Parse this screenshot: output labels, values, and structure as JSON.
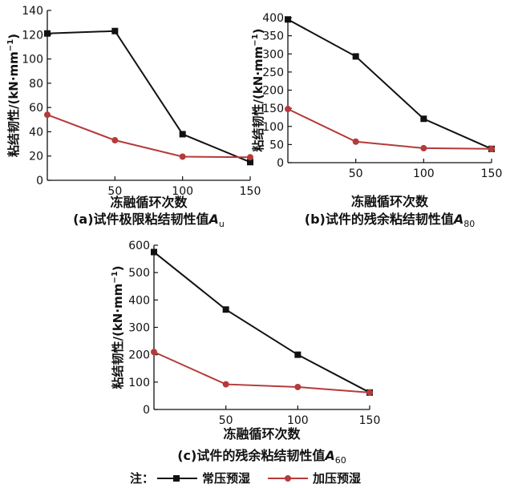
{
  "series_colors": {
    "normal": "#111111",
    "pressurized": "#b53a3a"
  },
  "chart_data": [
    {
      "type": "line",
      "caption_prefix": "(a)试件极限粘结韧性值",
      "caption_symbol": "A",
      "caption_sub": "u",
      "xlabel": "冻融循环次数",
      "ylabel": "粘结韧性/(kN·mm",
      "ylabel_sup": "−1",
      "ylabel_close": ")",
      "x": [
        0,
        50,
        100,
        150
      ],
      "xticks": [
        "50",
        "100",
        "150"
      ],
      "xlim": [
        0,
        150
      ],
      "ylim": [
        0,
        140
      ],
      "yticks": [
        "0",
        "20",
        "40",
        "60",
        "80",
        "100",
        "120",
        "140"
      ],
      "series": [
        {
          "name": "常压预湿",
          "values": [
            121,
            123,
            38,
            15
          ]
        },
        {
          "name": "加压预湿",
          "values": [
            54,
            33,
            19.5,
            19
          ]
        }
      ]
    },
    {
      "type": "line",
      "caption_prefix": "(b)试件的残余粘结韧性值",
      "caption_symbol": "A",
      "caption_sub": "80",
      "xlabel": "冻融循环次数",
      "ylabel": "粘结韧性/(kN·mm",
      "ylabel_sup": "−1",
      "ylabel_close": ")",
      "x": [
        0,
        50,
        100,
        150
      ],
      "xticks": [
        "50",
        "100",
        "150"
      ],
      "xlim": [
        0,
        150
      ],
      "ylim": [
        0,
        400
      ],
      "yticks": [
        "0",
        "50",
        "100",
        "150",
        "200",
        "250",
        "300",
        "350",
        "400"
      ],
      "series": [
        {
          "name": "常压预湿",
          "values": [
            395,
            293,
            121,
            38
          ]
        },
        {
          "name": "加压预湿",
          "values": [
            148,
            58,
            40,
            38
          ]
        }
      ]
    },
    {
      "type": "line",
      "caption_prefix": "(c)试件的残余粘结韧性值",
      "caption_symbol": "A",
      "caption_sub": "60",
      "xlabel": "冻融循环次数",
      "ylabel": "粘结韧性/(kN·mm",
      "ylabel_sup": "−1",
      "ylabel_close": ")",
      "x": [
        0,
        50,
        100,
        150
      ],
      "xticks": [
        "50",
        "100",
        "150"
      ],
      "xlim": [
        0,
        150
      ],
      "ylim": [
        0,
        600
      ],
      "yticks": [
        "0",
        "100",
        "200",
        "300",
        "400",
        "500",
        "600"
      ],
      "series": [
        {
          "name": "常压预湿",
          "values": [
            575,
            365,
            200,
            62
          ]
        },
        {
          "name": "加压预湿",
          "values": [
            210,
            92,
            82,
            62
          ]
        }
      ]
    }
  ],
  "legend": {
    "prefix": "注：",
    "items": [
      "常压预湿",
      "加压预湿"
    ]
  }
}
